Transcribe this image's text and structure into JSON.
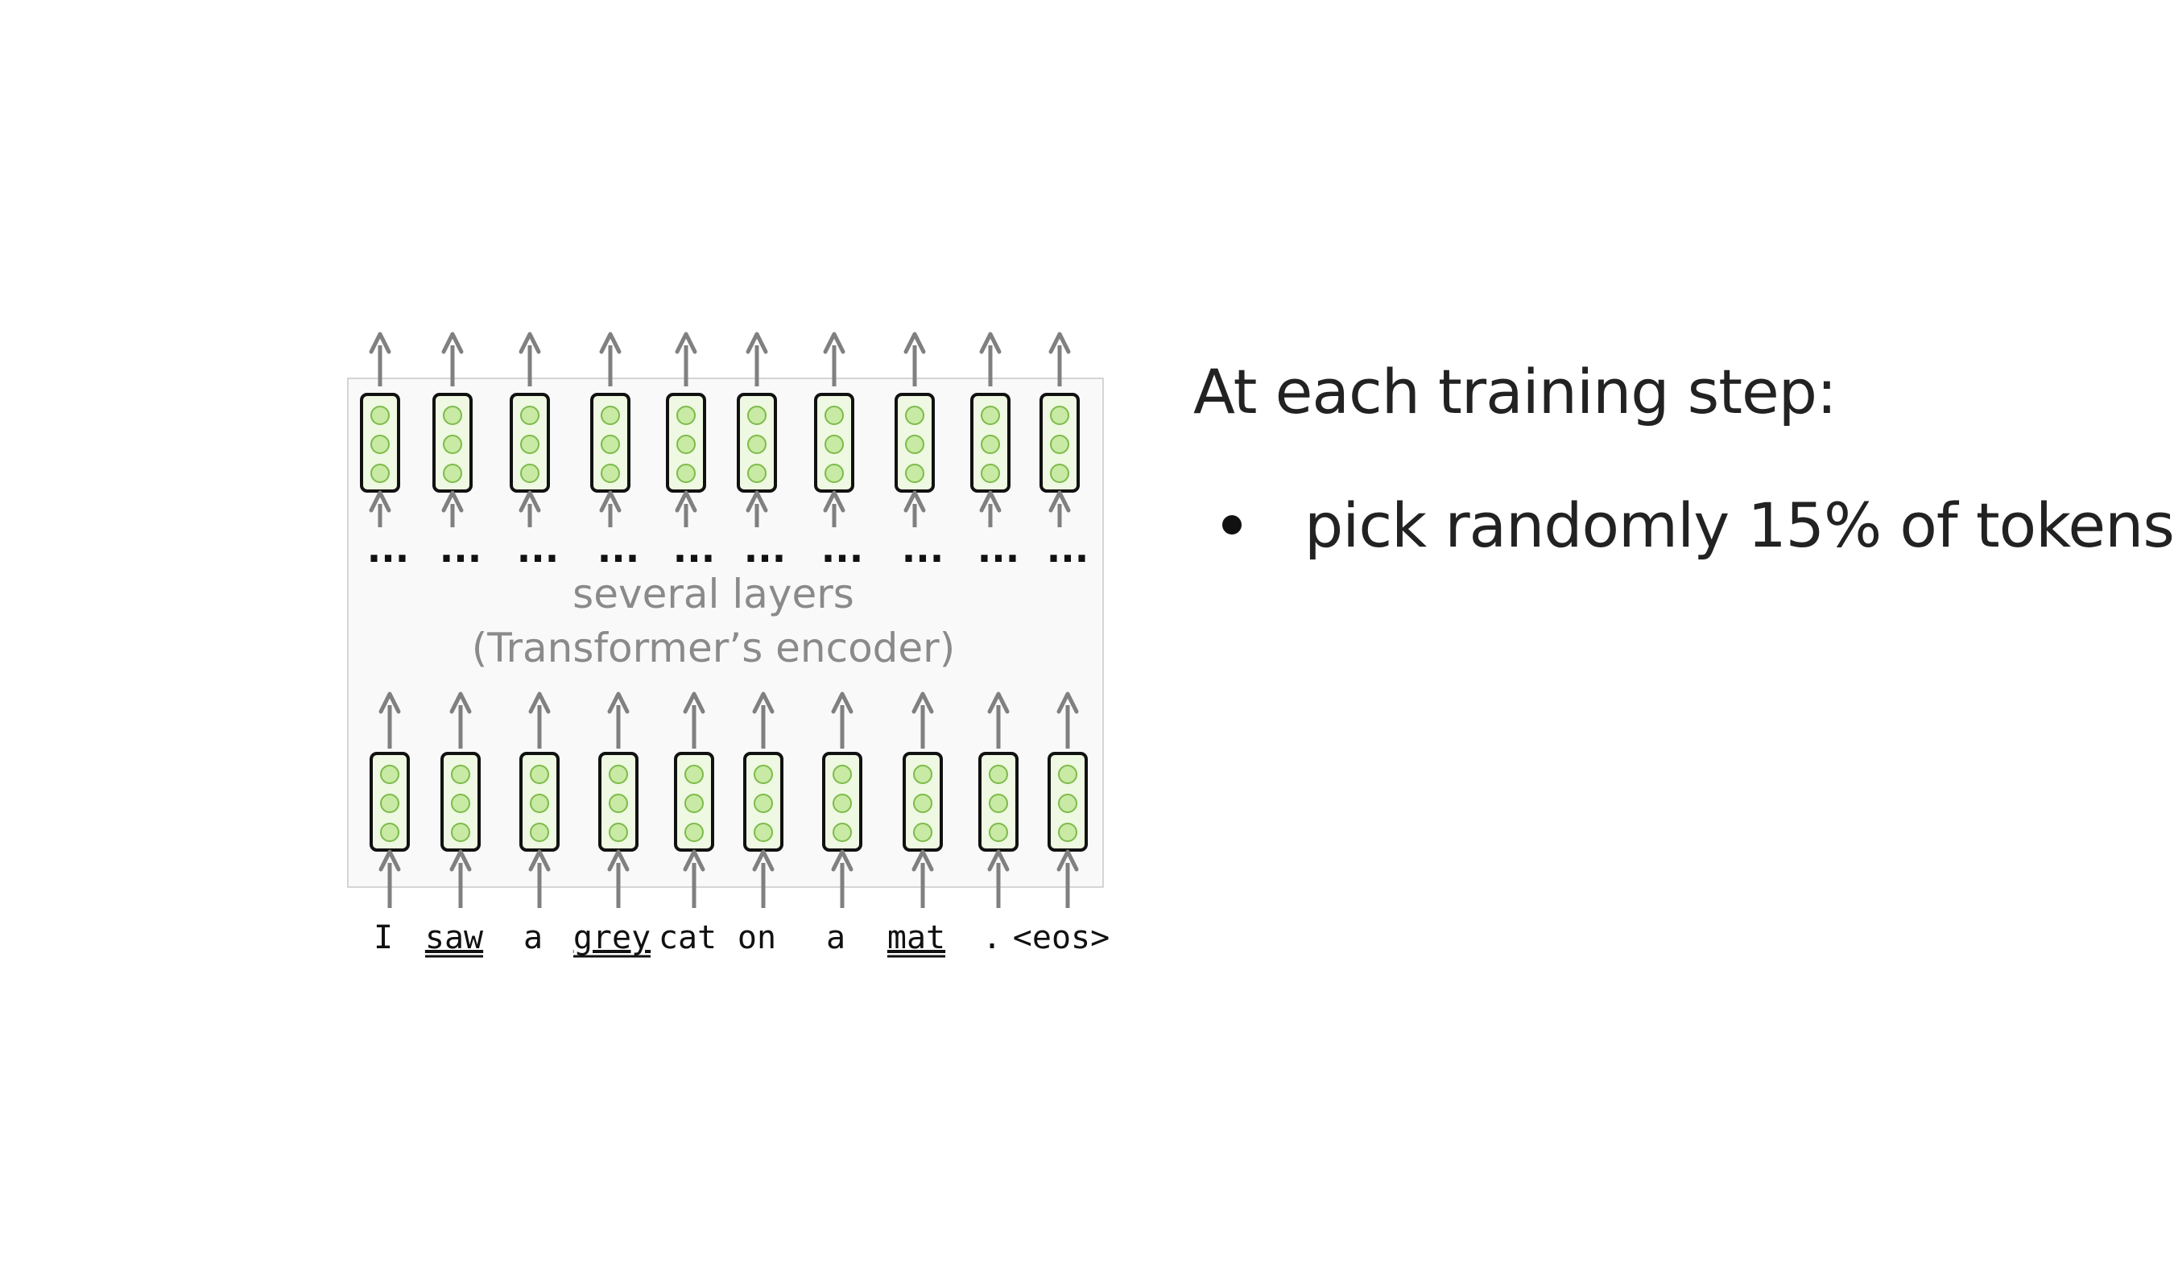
{
  "diagram": {
    "encoder_label_line1": "several layers",
    "encoder_label_line2": "(Transformer’s encoder)",
    "ellipsis": "...",
    "tokens": [
      {
        "text": "I",
        "underlined": false
      },
      {
        "text": "saw",
        "underlined": true
      },
      {
        "text": "a",
        "underlined": false
      },
      {
        "text": "grey",
        "underlined": true
      },
      {
        "text": "cat",
        "underlined": false
      },
      {
        "text": "on",
        "underlined": false
      },
      {
        "text": "a",
        "underlined": false
      },
      {
        "text": "mat",
        "underlined": true
      },
      {
        "text": ".",
        "underlined": false
      },
      {
        "text": "<eos>",
        "underlined": false
      }
    ],
    "colors": {
      "vector_fill": "#eef8e2",
      "vector_border": "#111111",
      "circle_fill": "#c8eaa4",
      "circle_stroke": "#7dbb4a",
      "arrow": "#808080",
      "encoder_box_fill": "#f9f9f9",
      "encoder_box_border": "#c8c8c8",
      "encoder_text": "#8a8a8a"
    }
  },
  "text_panel": {
    "heading": "At each training step:",
    "bullets": [
      "pick randomly 15% of tokens"
    ]
  }
}
